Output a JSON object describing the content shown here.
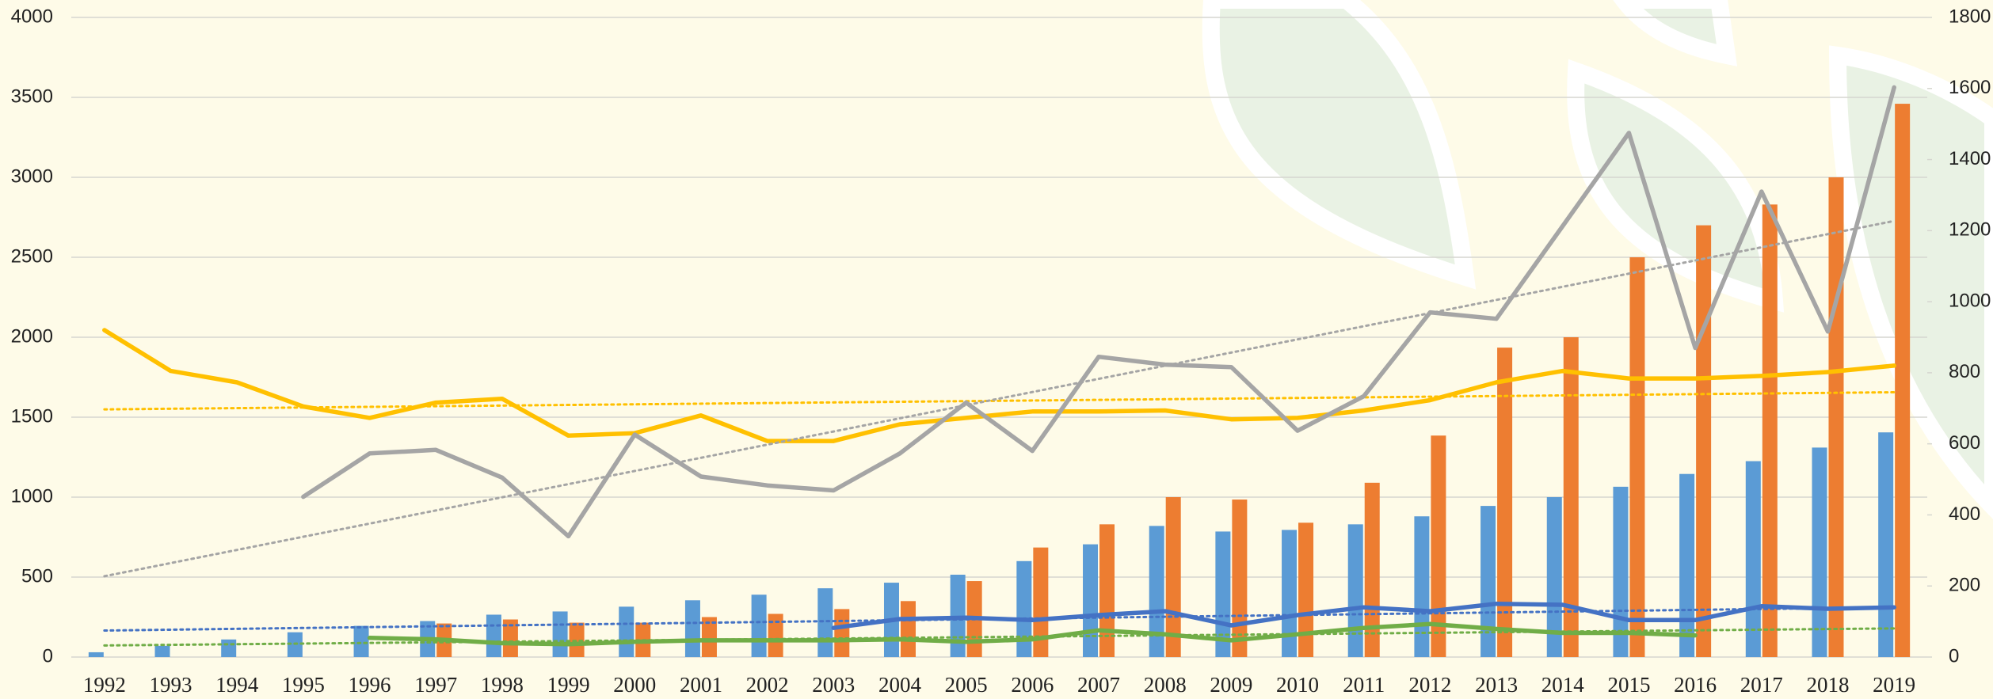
{
  "chart_data": {
    "type": "bar",
    "categories": [
      "1992",
      "1993",
      "1994",
      "1995",
      "1996",
      "1997",
      "1998",
      "1999",
      "2000",
      "2001",
      "2002",
      "2003",
      "2004",
      "2005",
      "2006",
      "2007",
      "2008",
      "2009",
      "2010",
      "2011",
      "2012",
      "2013",
      "2014",
      "2015",
      "2016",
      "2017",
      "2018",
      "2019"
    ],
    "series": [
      {
        "type": "bar",
        "color": "#5b9bd5",
        "values": [
          30,
          70,
          110,
          155,
          195,
          225,
          265,
          285,
          315,
          355,
          390,
          430,
          465,
          515,
          600,
          705,
          820,
          785,
          795,
          830,
          880,
          945,
          1000,
          1065,
          1145,
          1225,
          1310,
          1405
        ]
      },
      {
        "type": "bar",
        "color": "#ed7d31",
        "values": [
          null,
          null,
          null,
          null,
          null,
          210,
          235,
          215,
          215,
          250,
          270,
          300,
          350,
          475,
          685,
          830,
          1000,
          985,
          840,
          1090,
          1385,
          1935,
          2000,
          2500,
          2700,
          2830,
          3000,
          3460
        ]
      },
      {
        "type": "line",
        "axis": "y2",
        "color": "#ffc000",
        "trendline": true,
        "values": [
          920,
          805,
          773,
          705,
          673,
          716,
          727,
          623,
          630,
          680,
          608,
          608,
          655,
          673,
          691,
          691,
          694,
          669,
          673,
          694,
          723,
          773,
          805,
          784,
          784,
          791,
          802,
          820
        ]
      },
      {
        "type": "line",
        "axis": "y2",
        "color": "#a5a5a5",
        "trendline": true,
        "values": [
          null,
          null,
          null,
          451,
          573,
          583,
          505,
          340,
          626,
          508,
          483,
          469,
          573,
          716,
          580,
          845,
          823,
          816,
          637,
          734,
          970,
          952,
          1213,
          1475,
          870,
          1310,
          916,
          1603
        ]
      },
      {
        "type": "line",
        "axis": "y2",
        "color": "#4472c4",
        "trendline": true,
        "values": [
          null,
          null,
          null,
          null,
          null,
          null,
          null,
          null,
          null,
          null,
          null,
          82,
          107,
          111,
          104,
          118,
          129,
          89,
          118,
          140,
          129,
          150,
          147,
          104,
          104,
          143,
          136,
          140
        ]
      },
      {
        "type": "line",
        "axis": "y2",
        "color": "#70ad47",
        "trendline": true,
        "values": [
          null,
          null,
          null,
          null,
          54,
          50,
          39,
          36,
          43,
          47,
          47,
          47,
          50,
          43,
          50,
          75,
          64,
          47,
          64,
          82,
          93,
          79,
          68,
          68,
          61,
          null,
          null,
          null
        ]
      }
    ],
    "ylim": [
      0,
      4000
    ],
    "yticks": [
      0,
      500,
      1000,
      1500,
      2000,
      2500,
      3000,
      3500,
      4000
    ],
    "y2lim": [
      0,
      1800
    ],
    "y2ticks": [
      0,
      200,
      400,
      600,
      800,
      1000,
      1200,
      1400,
      1600,
      1800
    ],
    "grid": true
  }
}
